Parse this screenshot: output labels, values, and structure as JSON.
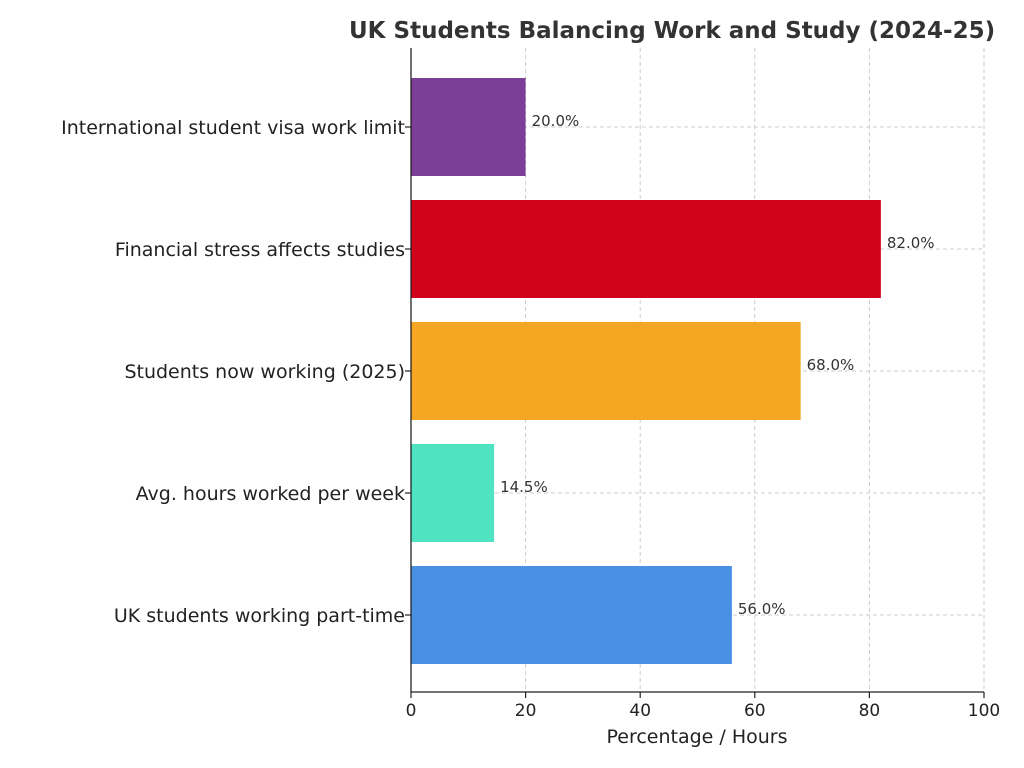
{
  "chart_data": {
    "type": "bar",
    "orientation": "horizontal",
    "title": "UK Students Balancing Work and Study (2024-25)",
    "xlabel": "Percentage / Hours",
    "ylabel": "",
    "xlim": [
      0,
      100
    ],
    "xticks": [
      0,
      20,
      40,
      60,
      80,
      100
    ],
    "grid": true,
    "categories": [
      "UK students working part-time",
      "Avg. hours worked per week",
      "Students now working (2025)",
      "Financial stress affects studies",
      "International student visa work limit"
    ],
    "values": [
      56.0,
      14.5,
      68.0,
      82.0,
      20.0
    ],
    "data_labels": [
      "56.0%",
      "14.5%",
      "68.0%",
      "82.0%",
      "20.0%"
    ],
    "colors": [
      "#4a90e2",
      "#50e3c2",
      "#f5a623",
      "#d0021b",
      "#7b3f98"
    ]
  }
}
